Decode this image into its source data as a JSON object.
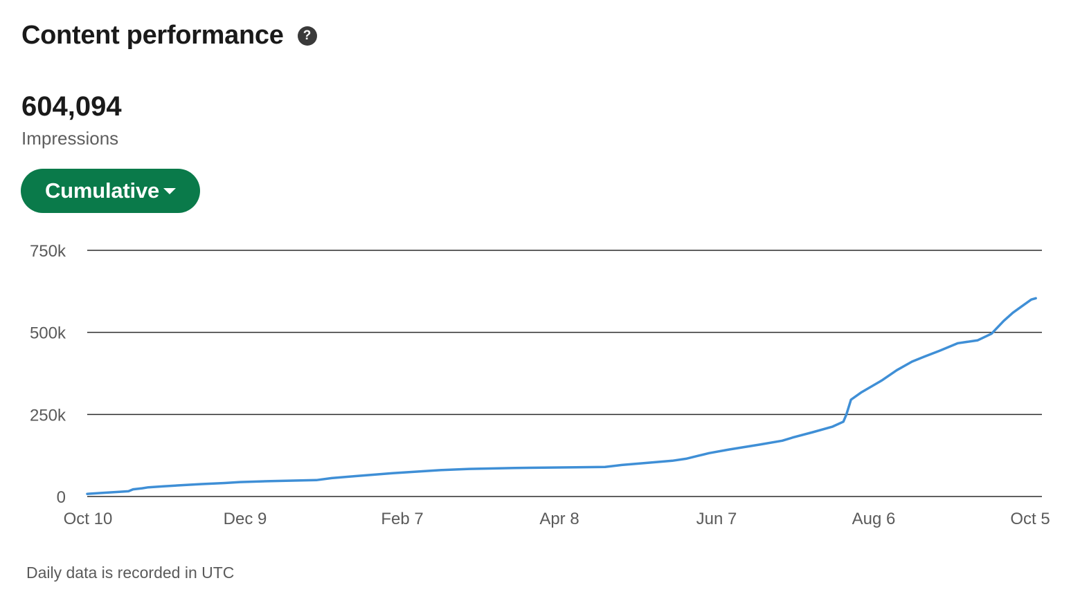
{
  "header": {
    "title": "Content performance",
    "help_icon": "question-circle-icon"
  },
  "metric": {
    "value": "604,094",
    "label": "Impressions"
  },
  "dropdown": {
    "label": "Cumulative",
    "icon": "caret-down-icon"
  },
  "footnote": "Daily data is recorded in UTC",
  "colors": {
    "accent_green": "#0a7a4a",
    "line_blue": "#3f8fd6",
    "grid": "#2b2b2b"
  },
  "chart_data": {
    "type": "line",
    "title": "",
    "xlabel": "",
    "ylabel": "",
    "ylim": [
      0,
      750000
    ],
    "yticks": [
      {
        "value": 0,
        "label": "0"
      },
      {
        "value": 250000,
        "label": "250k"
      },
      {
        "value": 500000,
        "label": "500k"
      },
      {
        "value": 750000,
        "label": "750k"
      }
    ],
    "xticks": [
      "Oct 10",
      "Dec 9",
      "Feb 7",
      "Apr 8",
      "Jun 7",
      "Aug 6",
      "Oct 5"
    ],
    "grid": true,
    "series": [
      {
        "color": "#3f8fd6",
        "x_unit": "days since Oct 10",
        "points": [
          [
            0,
            8000
          ],
          [
            10,
            11000
          ],
          [
            20,
            14000
          ],
          [
            27,
            16000
          ],
          [
            30,
            22000
          ],
          [
            36,
            25000
          ],
          [
            40,
            28000
          ],
          [
            50,
            31000
          ],
          [
            60,
            34000
          ],
          [
            68,
            36000
          ],
          [
            75,
            38000
          ],
          [
            90,
            41000
          ],
          [
            100,
            44000
          ],
          [
            120,
            47000
          ],
          [
            150,
            50000
          ],
          [
            160,
            56000
          ],
          [
            175,
            62000
          ],
          [
            200,
            71000
          ],
          [
            230,
            80000
          ],
          [
            250,
            84000
          ],
          [
            280,
            87000
          ],
          [
            320,
            89000
          ],
          [
            339,
            90000
          ],
          [
            350,
            96000
          ],
          [
            365,
            102000
          ],
          [
            383,
            109000
          ],
          [
            392,
            115000
          ],
          [
            400,
            124000
          ],
          [
            407,
            132000
          ],
          [
            420,
            143000
          ],
          [
            440,
            158000
          ],
          [
            455,
            170000
          ],
          [
            462,
            180000
          ],
          [
            475,
            196000
          ],
          [
            488,
            213000
          ],
          [
            495,
            228000
          ],
          [
            497,
            250000
          ],
          [
            500,
            295000
          ],
          [
            507,
            318000
          ],
          [
            520,
            353000
          ],
          [
            530,
            385000
          ],
          [
            540,
            411000
          ],
          [
            548,
            426000
          ],
          [
            558,
            444000
          ],
          [
            570,
            467000
          ],
          [
            583,
            476000
          ],
          [
            592,
            496000
          ],
          [
            600,
            535000
          ],
          [
            606,
            560000
          ],
          [
            612,
            580000
          ],
          [
            618,
            600000
          ],
          [
            621,
            604094
          ]
        ]
      }
    ]
  }
}
